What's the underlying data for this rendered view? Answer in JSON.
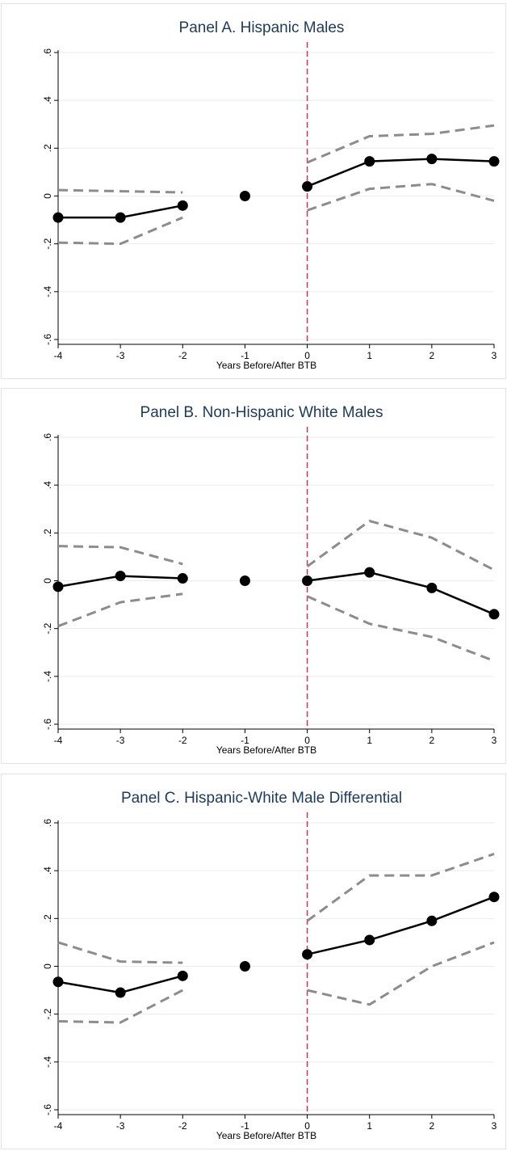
{
  "chart_data": [
    {
      "type": "line",
      "title": "Panel A. Hispanic Males",
      "xlabel": "Years Before/After BTB",
      "ylabel": "",
      "x": [
        -4,
        -3,
        -2,
        -1,
        0,
        1,
        2,
        3
      ],
      "xticks": [
        "-4",
        "-3",
        "-2",
        "-1",
        "0",
        "1",
        "2",
        "3"
      ],
      "yticks": [
        "-.6",
        "-.4",
        "-.2",
        "0",
        ".2",
        ".4",
        ".6"
      ],
      "xlim": [
        -4,
        3
      ],
      "ylim": [
        -0.6,
        0.6
      ],
      "grid": true,
      "reference_line_x": 0,
      "series": [
        {
          "role": "estimate",
          "values": [
            -0.09,
            -0.09,
            -0.04,
            0.0,
            0.04,
            0.145,
            0.155,
            0.145
          ]
        },
        {
          "role": "ci_upper",
          "values": [
            0.025,
            0.02,
            0.015,
            null,
            0.14,
            0.25,
            0.26,
            0.295
          ]
        },
        {
          "role": "ci_lower",
          "values": [
            -0.195,
            -0.2,
            -0.09,
            null,
            -0.06,
            0.03,
            0.05,
            -0.02
          ]
        }
      ]
    },
    {
      "type": "line",
      "title": "Panel B. Non-Hispanic White Males",
      "xlabel": "Years Before/After BTB",
      "ylabel": "",
      "x": [
        -4,
        -3,
        -2,
        -1,
        0,
        1,
        2,
        3
      ],
      "xticks": [
        "-4",
        "-3",
        "-2",
        "-1",
        "0",
        "1",
        "2",
        "3"
      ],
      "yticks": [
        "-.6",
        "-.4",
        "-.2",
        "0",
        ".2",
        ".4",
        ".6"
      ],
      "xlim": [
        -4,
        3
      ],
      "ylim": [
        -0.6,
        0.6
      ],
      "grid": true,
      "reference_line_x": 0,
      "series": [
        {
          "role": "estimate",
          "values": [
            -0.025,
            0.02,
            0.01,
            0.0,
            0.0,
            0.035,
            -0.03,
            -0.14
          ]
        },
        {
          "role": "ci_upper",
          "values": [
            0.145,
            0.14,
            0.07,
            null,
            0.06,
            0.25,
            0.18,
            0.045
          ]
        },
        {
          "role": "ci_lower",
          "values": [
            -0.19,
            -0.09,
            -0.055,
            null,
            -0.065,
            -0.18,
            -0.235,
            -0.335
          ]
        }
      ]
    },
    {
      "type": "line",
      "title": "Panel C. Hispanic-White Male Differential",
      "xlabel": "Years Before/After BTB",
      "ylabel": "",
      "x": [
        -4,
        -3,
        -2,
        -1,
        0,
        1,
        2,
        3
      ],
      "xticks": [
        "-4",
        "-3",
        "-2",
        "-1",
        "0",
        "1",
        "2",
        "3"
      ],
      "yticks": [
        "-.6",
        "-.4",
        "-.2",
        "0",
        ".2",
        ".4",
        ".6"
      ],
      "xlim": [
        -4,
        3
      ],
      "ylim": [
        -0.6,
        0.6
      ],
      "grid": true,
      "reference_line_x": 0,
      "series": [
        {
          "role": "estimate",
          "values": [
            -0.065,
            -0.11,
            -0.04,
            0.0,
            0.05,
            0.11,
            0.19,
            0.29
          ]
        },
        {
          "role": "ci_upper",
          "values": [
            0.1,
            0.02,
            0.015,
            null,
            0.19,
            0.38,
            0.38,
            0.47
          ]
        },
        {
          "role": "ci_lower",
          "values": [
            -0.23,
            -0.235,
            -0.1,
            null,
            -0.1,
            -0.16,
            0.0,
            0.1
          ]
        }
      ]
    }
  ],
  "colors": {
    "title": "#1c3a5e",
    "estimate": "#000000",
    "ci": "#8c8c8c",
    "reference_line": "#c8345a",
    "grid": "#ebebeb"
  }
}
